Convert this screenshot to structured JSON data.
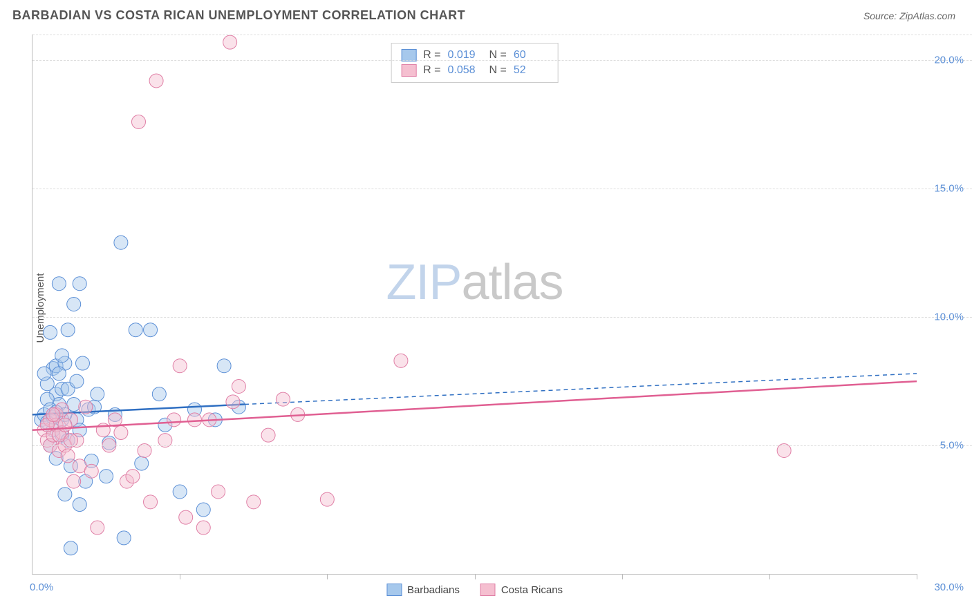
{
  "header": {
    "title": "BARBADIAN VS COSTA RICAN UNEMPLOYMENT CORRELATION CHART",
    "source": "Source: ZipAtlas.com"
  },
  "ylabel": "Unemployment",
  "watermark": {
    "part1": "ZIP",
    "part2": "atlas"
  },
  "chart": {
    "type": "scatter",
    "xlim": [
      0,
      30
    ],
    "ylim": [
      0,
      21
    ],
    "xtick_step": 5,
    "ytick_values": [
      5,
      10,
      15,
      20
    ],
    "ytick_labels": [
      "5.0%",
      "10.0%",
      "15.0%",
      "20.0%"
    ],
    "xlabel_min": "0.0%",
    "xlabel_max": "30.0%",
    "grid_color": "#dddddd",
    "axis_color": "#bbbbbb",
    "marker_radius": 10,
    "marker_opacity": 0.45,
    "series": [
      {
        "name": "Barbadians",
        "color_fill": "#a6c8ec",
        "color_stroke": "#5b8fd6",
        "line_color": "#2f6fc2",
        "points": [
          [
            0.3,
            6.0
          ],
          [
            0.4,
            6.2
          ],
          [
            0.5,
            5.9
          ],
          [
            0.5,
            7.4
          ],
          [
            0.6,
            9.4
          ],
          [
            0.6,
            5.0
          ],
          [
            0.7,
            6.1
          ],
          [
            0.7,
            8.0
          ],
          [
            0.8,
            8.1
          ],
          [
            0.8,
            7.0
          ],
          [
            0.8,
            4.5
          ],
          [
            0.9,
            6.6
          ],
          [
            0.9,
            11.3
          ],
          [
            1.0,
            5.4
          ],
          [
            1.0,
            7.2
          ],
          [
            1.0,
            6.0
          ],
          [
            1.1,
            8.2
          ],
          [
            1.1,
            3.1
          ],
          [
            1.2,
            7.2
          ],
          [
            1.2,
            9.5
          ],
          [
            1.3,
            1.0
          ],
          [
            1.3,
            4.2
          ],
          [
            1.4,
            10.5
          ],
          [
            1.5,
            6.0
          ],
          [
            1.5,
            7.5
          ],
          [
            1.6,
            11.3
          ],
          [
            1.6,
            2.7
          ],
          [
            1.7,
            8.2
          ],
          [
            1.8,
            3.6
          ],
          [
            1.9,
            6.4
          ],
          [
            2.0,
            4.4
          ],
          [
            2.1,
            6.5
          ],
          [
            2.5,
            3.8
          ],
          [
            2.6,
            5.1
          ],
          [
            2.8,
            6.2
          ],
          [
            3.0,
            12.9
          ],
          [
            3.1,
            1.4
          ],
          [
            3.5,
            9.5
          ],
          [
            3.7,
            4.3
          ],
          [
            4.0,
            9.5
          ],
          [
            4.3,
            7.0
          ],
          [
            4.5,
            5.8
          ],
          [
            5.0,
            3.2
          ],
          [
            5.5,
            6.4
          ],
          [
            5.8,
            2.5
          ],
          [
            6.2,
            6.0
          ],
          [
            6.5,
            8.1
          ],
          [
            7.0,
            6.5
          ],
          [
            0.4,
            7.8
          ],
          [
            0.5,
            6.8
          ],
          [
            0.6,
            6.4
          ],
          [
            0.7,
            5.6
          ],
          [
            0.8,
            6.3
          ],
          [
            0.9,
            7.8
          ],
          [
            1.0,
            8.5
          ],
          [
            1.1,
            6.2
          ],
          [
            1.2,
            5.2
          ],
          [
            1.4,
            6.6
          ],
          [
            1.6,
            5.6
          ],
          [
            2.2,
            7.0
          ]
        ],
        "regression": {
          "x1": 0,
          "y1": 6.2,
          "x2": 7.2,
          "y2": 6.6,
          "dash_x1": 7.2,
          "dash_y1": 6.6,
          "dash_x2": 30,
          "dash_y2": 7.8
        }
      },
      {
        "name": "Costa Ricans",
        "color_fill": "#f5bfd0",
        "color_stroke": "#e07fa6",
        "line_color": "#e05f92",
        "points": [
          [
            0.4,
            5.6
          ],
          [
            0.5,
            5.2
          ],
          [
            0.6,
            6.0
          ],
          [
            0.6,
            5.0
          ],
          [
            0.7,
            5.4
          ],
          [
            0.8,
            6.2
          ],
          [
            0.8,
            5.8
          ],
          [
            0.9,
            4.8
          ],
          [
            1.0,
            5.5
          ],
          [
            1.0,
            6.4
          ],
          [
            1.1,
            5.0
          ],
          [
            1.2,
            4.6
          ],
          [
            1.3,
            6.0
          ],
          [
            1.4,
            3.6
          ],
          [
            1.5,
            5.2
          ],
          [
            1.6,
            4.2
          ],
          [
            1.8,
            6.5
          ],
          [
            2.0,
            4.0
          ],
          [
            2.2,
            1.8
          ],
          [
            2.4,
            5.6
          ],
          [
            2.6,
            5.0
          ],
          [
            2.8,
            6.0
          ],
          [
            3.0,
            5.5
          ],
          [
            3.2,
            3.6
          ],
          [
            3.4,
            3.8
          ],
          [
            3.6,
            17.6
          ],
          [
            3.8,
            4.8
          ],
          [
            4.0,
            2.8
          ],
          [
            4.2,
            19.2
          ],
          [
            4.5,
            5.2
          ],
          [
            4.8,
            6.0
          ],
          [
            5.0,
            8.1
          ],
          [
            5.2,
            2.2
          ],
          [
            5.5,
            6.0
          ],
          [
            5.8,
            1.8
          ],
          [
            6.0,
            6.0
          ],
          [
            6.3,
            3.2
          ],
          [
            6.7,
            20.7
          ],
          [
            6.8,
            6.7
          ],
          [
            7.0,
            7.3
          ],
          [
            7.5,
            2.8
          ],
          [
            8.0,
            5.4
          ],
          [
            8.5,
            6.8
          ],
          [
            9.0,
            6.2
          ],
          [
            10.0,
            2.9
          ],
          [
            12.5,
            8.3
          ],
          [
            0.5,
            5.8
          ],
          [
            0.7,
            6.2
          ],
          [
            0.9,
            5.4
          ],
          [
            1.1,
            5.8
          ],
          [
            1.3,
            5.2
          ],
          [
            25.5,
            4.8
          ]
        ],
        "regression": {
          "x1": 0,
          "y1": 5.6,
          "x2": 30,
          "y2": 7.5
        }
      }
    ]
  },
  "legend_top": {
    "rows": [
      {
        "swatch_fill": "#a6c8ec",
        "swatch_stroke": "#5b8fd6",
        "r_label": "R  =",
        "r_val": "0.019",
        "n_label": "N  =",
        "n_val": "60"
      },
      {
        "swatch_fill": "#f5bfd0",
        "swatch_stroke": "#e07fa6",
        "r_label": "R  =",
        "r_val": "0.058",
        "n_label": "N  =",
        "n_val": "52"
      }
    ]
  },
  "legend_bottom": [
    {
      "swatch_fill": "#a6c8ec",
      "swatch_stroke": "#5b8fd6",
      "label": "Barbadians"
    },
    {
      "swatch_fill": "#f5bfd0",
      "swatch_stroke": "#e07fa6",
      "label": "Costa Ricans"
    }
  ]
}
